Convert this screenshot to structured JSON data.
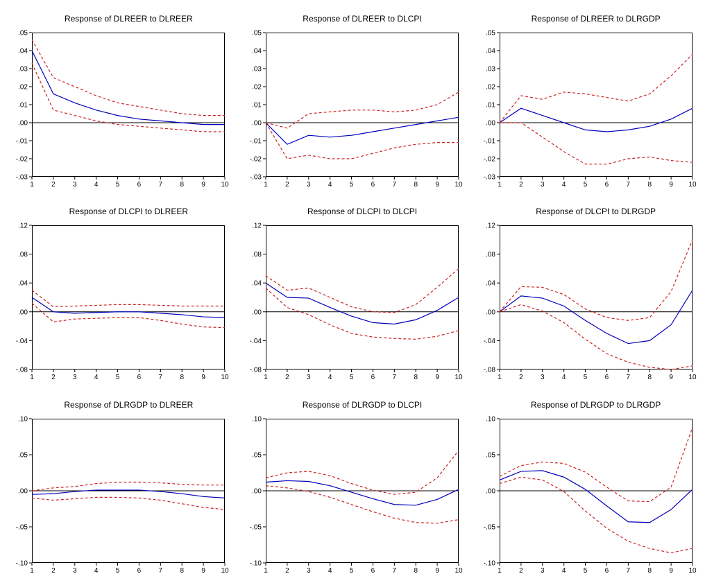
{
  "colors": {
    "response": "#0000bb",
    "band": "#cc2222",
    "axis": "#000000"
  },
  "chart_data": [
    {
      "type": "line",
      "title": "Response of DLREER to DLREER",
      "x": [
        1,
        2,
        3,
        4,
        5,
        6,
        7,
        8,
        9,
        10
      ],
      "xlim": [
        1,
        10
      ],
      "ylim": [
        -0.03,
        0.05
      ],
      "yticks": [
        {
          "v": 0.05,
          "label": ".05"
        },
        {
          "v": 0.04,
          "label": ".04"
        },
        {
          "v": 0.03,
          "label": ".03"
        },
        {
          "v": 0.02,
          "label": ".02"
        },
        {
          "v": 0.01,
          "label": ".01"
        },
        {
          "v": 0.0,
          "label": ".00"
        },
        {
          "v": -0.01,
          "label": "-.01"
        },
        {
          "v": -0.02,
          "label": "-.02"
        },
        {
          "v": -0.03,
          "label": "-.03"
        }
      ],
      "series": [
        {
          "name": "response",
          "color": "response",
          "dash": false,
          "values": [
            0.04,
            0.016,
            0.011,
            0.007,
            0.004,
            0.002,
            0.001,
            0.0,
            -0.001,
            -0.001
          ]
        },
        {
          "name": "upper-band",
          "color": "band",
          "dash": true,
          "values": [
            0.046,
            0.025,
            0.02,
            0.015,
            0.011,
            0.009,
            0.007,
            0.005,
            0.004,
            0.004
          ]
        },
        {
          "name": "lower-band",
          "color": "band",
          "dash": true,
          "values": [
            0.033,
            0.007,
            0.004,
            0.001,
            -0.001,
            -0.002,
            -0.003,
            -0.004,
            -0.005,
            -0.005
          ]
        }
      ]
    },
    {
      "type": "line",
      "title": "Response of DLREER to DLCPI",
      "x": [
        1,
        2,
        3,
        4,
        5,
        6,
        7,
        8,
        9,
        10
      ],
      "xlim": [
        1,
        10
      ],
      "ylim": [
        -0.03,
        0.05
      ],
      "yticks": [
        {
          "v": 0.05,
          "label": ".05"
        },
        {
          "v": 0.04,
          "label": ".04"
        },
        {
          "v": 0.03,
          "label": ".03"
        },
        {
          "v": 0.02,
          "label": ".02"
        },
        {
          "v": 0.01,
          "label": ".01"
        },
        {
          "v": 0.0,
          "label": ".00"
        },
        {
          "v": -0.01,
          "label": "-.01"
        },
        {
          "v": -0.02,
          "label": "-.02"
        },
        {
          "v": -0.03,
          "label": "-.03"
        }
      ],
      "series": [
        {
          "name": "response",
          "color": "response",
          "dash": false,
          "values": [
            0.0,
            -0.012,
            -0.007,
            -0.008,
            -0.007,
            -0.005,
            -0.003,
            -0.001,
            0.001,
            0.003
          ]
        },
        {
          "name": "upper-band",
          "color": "band",
          "dash": true,
          "values": [
            0.0,
            -0.003,
            0.005,
            0.006,
            0.007,
            0.007,
            0.006,
            0.007,
            0.01,
            0.017
          ]
        },
        {
          "name": "lower-band",
          "color": "band",
          "dash": true,
          "values": [
            0.0,
            -0.02,
            -0.018,
            -0.02,
            -0.02,
            -0.017,
            -0.014,
            -0.012,
            -0.011,
            -0.011
          ]
        }
      ]
    },
    {
      "type": "line",
      "title": "Response of DLREER to DLRGDP",
      "x": [
        1,
        2,
        3,
        4,
        5,
        6,
        7,
        8,
        9,
        10
      ],
      "xlim": [
        1,
        10
      ],
      "ylim": [
        -0.03,
        0.05
      ],
      "yticks": [
        {
          "v": 0.05,
          "label": ".05"
        },
        {
          "v": 0.04,
          "label": ".04"
        },
        {
          "v": 0.03,
          "label": ".03"
        },
        {
          "v": 0.02,
          "label": ".02"
        },
        {
          "v": 0.01,
          "label": ".01"
        },
        {
          "v": 0.0,
          "label": ".00"
        },
        {
          "v": -0.01,
          "label": "-.01"
        },
        {
          "v": -0.02,
          "label": "-.02"
        },
        {
          "v": -0.03,
          "label": "-.03"
        }
      ],
      "series": [
        {
          "name": "response",
          "color": "response",
          "dash": false,
          "values": [
            0.0,
            0.008,
            0.004,
            0.0,
            -0.004,
            -0.005,
            -0.004,
            -0.002,
            0.002,
            0.008
          ]
        },
        {
          "name": "upper-band",
          "color": "band",
          "dash": true,
          "values": [
            0.0,
            0.015,
            0.013,
            0.017,
            0.016,
            0.014,
            0.012,
            0.016,
            0.026,
            0.038
          ]
        },
        {
          "name": "lower-band",
          "color": "band",
          "dash": true,
          "values": [
            0.0,
            0.0,
            -0.008,
            -0.016,
            -0.023,
            -0.023,
            -0.02,
            -0.019,
            -0.021,
            -0.022
          ]
        }
      ]
    },
    {
      "type": "line",
      "title": "Response of DLCPI to DLREER",
      "x": [
        1,
        2,
        3,
        4,
        5,
        6,
        7,
        8,
        9,
        10
      ],
      "xlim": [
        1,
        10
      ],
      "ylim": [
        -0.08,
        0.12
      ],
      "yticks": [
        {
          "v": 0.12,
          "label": ".12"
        },
        {
          "v": 0.08,
          "label": ".08"
        },
        {
          "v": 0.04,
          "label": ".04"
        },
        {
          "v": 0.0,
          "label": ".00"
        },
        {
          "v": -0.04,
          "label": "-.04"
        },
        {
          "v": -0.08,
          "label": "-.08"
        }
      ],
      "series": [
        {
          "name": "response",
          "color": "response",
          "dash": false,
          "values": [
            0.02,
            0.0,
            -0.002,
            -0.001,
            0.0,
            0.0,
            -0.002,
            -0.004,
            -0.007,
            -0.008
          ]
        },
        {
          "name": "upper-band",
          "color": "band",
          "dash": true,
          "values": [
            0.03,
            0.007,
            0.008,
            0.009,
            0.01,
            0.01,
            0.009,
            0.008,
            0.008,
            0.008
          ]
        },
        {
          "name": "lower-band",
          "color": "band",
          "dash": true,
          "values": [
            0.012,
            -0.014,
            -0.01,
            -0.009,
            -0.008,
            -0.008,
            -0.012,
            -0.017,
            -0.021,
            -0.022
          ]
        }
      ]
    },
    {
      "type": "line",
      "title": "Response of DLCPI to DLCPI",
      "x": [
        1,
        2,
        3,
        4,
        5,
        6,
        7,
        8,
        9,
        10
      ],
      "xlim": [
        1,
        10
      ],
      "ylim": [
        -0.08,
        0.12
      ],
      "yticks": [
        {
          "v": 0.12,
          "label": ".12"
        },
        {
          "v": 0.08,
          "label": ".08"
        },
        {
          "v": 0.04,
          "label": ".04"
        },
        {
          "v": 0.0,
          "label": ".00"
        },
        {
          "v": -0.04,
          "label": "-.04"
        },
        {
          "v": -0.08,
          "label": "-.08"
        }
      ],
      "series": [
        {
          "name": "response",
          "color": "response",
          "dash": false,
          "values": [
            0.04,
            0.02,
            0.019,
            0.006,
            -0.006,
            -0.015,
            -0.017,
            -0.011,
            0.002,
            0.02
          ]
        },
        {
          "name": "upper-band",
          "color": "band",
          "dash": true,
          "values": [
            0.05,
            0.03,
            0.033,
            0.02,
            0.007,
            0.0,
            -0.001,
            0.01,
            0.034,
            0.06
          ]
        },
        {
          "name": "lower-band",
          "color": "band",
          "dash": true,
          "values": [
            0.033,
            0.006,
            -0.004,
            -0.018,
            -0.03,
            -0.035,
            -0.037,
            -0.038,
            -0.034,
            -0.026
          ]
        }
      ]
    },
    {
      "type": "line",
      "title": "Response of DLCPI to DLRGDP",
      "x": [
        1,
        2,
        3,
        4,
        5,
        6,
        7,
        8,
        9,
        10
      ],
      "xlim": [
        1,
        10
      ],
      "ylim": [
        -0.08,
        0.12
      ],
      "yticks": [
        {
          "v": 0.12,
          "label": ".12"
        },
        {
          "v": 0.08,
          "label": ".08"
        },
        {
          "v": 0.04,
          "label": ".04"
        },
        {
          "v": 0.0,
          "label": ".00"
        },
        {
          "v": -0.04,
          "label": "-.04"
        },
        {
          "v": -0.08,
          "label": "-.08"
        }
      ],
      "series": [
        {
          "name": "response",
          "color": "response",
          "dash": false,
          "values": [
            0.0,
            0.022,
            0.019,
            0.008,
            -0.012,
            -0.03,
            -0.044,
            -0.04,
            -0.018,
            0.03
          ]
        },
        {
          "name": "upper-band",
          "color": "band",
          "dash": true,
          "values": [
            0.0,
            0.035,
            0.034,
            0.024,
            0.004,
            -0.008,
            -0.012,
            -0.008,
            0.028,
            0.1
          ]
        },
        {
          "name": "lower-band",
          "color": "band",
          "dash": true,
          "values": [
            0.0,
            0.01,
            0.001,
            -0.015,
            -0.038,
            -0.058,
            -0.07,
            -0.077,
            -0.08,
            -0.075
          ]
        }
      ]
    },
    {
      "type": "line",
      "title": "Response of DLRGDP to DLREER",
      "x": [
        1,
        2,
        3,
        4,
        5,
        6,
        7,
        8,
        9,
        10
      ],
      "xlim": [
        1,
        10
      ],
      "ylim": [
        -0.1,
        0.1
      ],
      "yticks": [
        {
          "v": 0.1,
          "label": ".10"
        },
        {
          "v": 0.05,
          "label": ".05"
        },
        {
          "v": 0.0,
          "label": ".00"
        },
        {
          "v": -0.05,
          "label": "-.05"
        },
        {
          "v": -0.1,
          "label": "-.10"
        }
      ],
      "series": [
        {
          "name": "response",
          "color": "response",
          "dash": false,
          "values": [
            -0.005,
            -0.004,
            -0.001,
            0.001,
            0.001,
            0.001,
            -0.001,
            -0.004,
            -0.008,
            -0.01
          ]
        },
        {
          "name": "upper-band",
          "color": "band",
          "dash": true,
          "values": [
            0.0,
            0.004,
            0.006,
            0.01,
            0.012,
            0.012,
            0.011,
            0.009,
            0.008,
            0.008
          ]
        },
        {
          "name": "lower-band",
          "color": "band",
          "dash": true,
          "values": [
            -0.01,
            -0.013,
            -0.011,
            -0.009,
            -0.009,
            -0.01,
            -0.013,
            -0.018,
            -0.023,
            -0.026
          ]
        }
      ]
    },
    {
      "type": "line",
      "title": "Response of DLRGDP to DLCPI",
      "x": [
        1,
        2,
        3,
        4,
        5,
        6,
        7,
        8,
        9,
        10
      ],
      "xlim": [
        1,
        10
      ],
      "ylim": [
        -0.1,
        0.1
      ],
      "yticks": [
        {
          "v": 0.1,
          "label": ".10"
        },
        {
          "v": 0.05,
          "label": ".05"
        },
        {
          "v": 0.0,
          "label": ".00"
        },
        {
          "v": -0.05,
          "label": "-.05"
        },
        {
          "v": -0.1,
          "label": "-.10"
        }
      ],
      "series": [
        {
          "name": "response",
          "color": "response",
          "dash": false,
          "values": [
            0.012,
            0.014,
            0.013,
            0.007,
            -0.002,
            -0.011,
            -0.019,
            -0.02,
            -0.012,
            0.002
          ]
        },
        {
          "name": "upper-band",
          "color": "band",
          "dash": true,
          "values": [
            0.018,
            0.025,
            0.027,
            0.021,
            0.01,
            0.001,
            -0.005,
            -0.002,
            0.018,
            0.056
          ]
        },
        {
          "name": "lower-band",
          "color": "band",
          "dash": true,
          "values": [
            0.007,
            0.004,
            -0.001,
            -0.009,
            -0.019,
            -0.029,
            -0.038,
            -0.044,
            -0.045,
            -0.04
          ]
        }
      ]
    },
    {
      "type": "line",
      "title": "Response of DLRGDP to DLRGDP",
      "x": [
        1,
        2,
        3,
        4,
        5,
        6,
        7,
        8,
        9,
        10
      ],
      "xlim": [
        1,
        10
      ],
      "ylim": [
        -0.1,
        0.1
      ],
      "yticks": [
        {
          "v": 0.1,
          "label": ".10"
        },
        {
          "v": 0.05,
          "label": ".05"
        },
        {
          "v": 0.0,
          "label": ".00"
        },
        {
          "v": -0.05,
          "label": "-.05"
        },
        {
          "v": -0.1,
          "label": "-.10"
        }
      ],
      "series": [
        {
          "name": "response",
          "color": "response",
          "dash": false,
          "values": [
            0.015,
            0.027,
            0.028,
            0.019,
            0.002,
            -0.021,
            -0.043,
            -0.044,
            -0.026,
            0.002
          ]
        },
        {
          "name": "upper-band",
          "color": "band",
          "dash": true,
          "values": [
            0.02,
            0.035,
            0.04,
            0.038,
            0.026,
            0.005,
            -0.014,
            -0.015,
            0.005,
            0.088
          ]
        },
        {
          "name": "lower-band",
          "color": "band",
          "dash": true,
          "values": [
            0.01,
            0.019,
            0.015,
            -0.001,
            -0.028,
            -0.052,
            -0.07,
            -0.08,
            -0.086,
            -0.08
          ]
        }
      ]
    }
  ]
}
